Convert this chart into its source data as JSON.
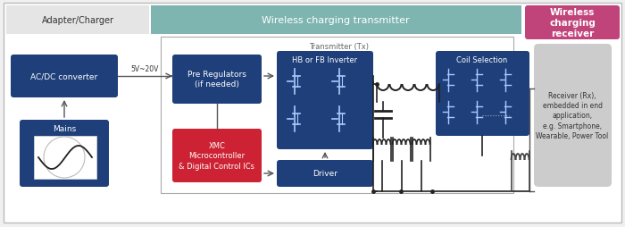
{
  "fig_width": 7.0,
  "fig_height": 2.55,
  "dpi": 100,
  "bg_color": "#f0f0f0",
  "dark_blue": "#1e3f7a",
  "red": "#cc2233",
  "teal_header": "#7eb5b0",
  "pink_header": "#c0447a",
  "light_gray": "#cccccc",
  "mid_gray": "#b0b0b0",
  "white": "#ffffff",
  "adapter_charger_label": "Adapter/Charger",
  "wireless_tx_label": "Wireless charging transmitter",
  "wireless_rx_label": "Wireless\ncharging\nreceiver",
  "transmitter_tx_label": "Transmitter (Tx)",
  "acdc_label": "AC/DC converter",
  "mains_label": "Mains",
  "voltage_label": "5V~20V",
  "pre_reg_label": "Pre Regulators\n(if needed)",
  "hb_fb_label": "HB or FB Inverter",
  "xmc_label": "XMC\nMicrocontroller\n& Digital Control ICs",
  "driver_label": "Driver",
  "coil_sel_label": "Coil Selection",
  "receiver_label": "Receiver (Rx),\nembedded in end\napplication,\ne.g. Smartphone,\nWearable, Power Tool",
  "line_color": "#555555",
  "text_dark": "#333333"
}
